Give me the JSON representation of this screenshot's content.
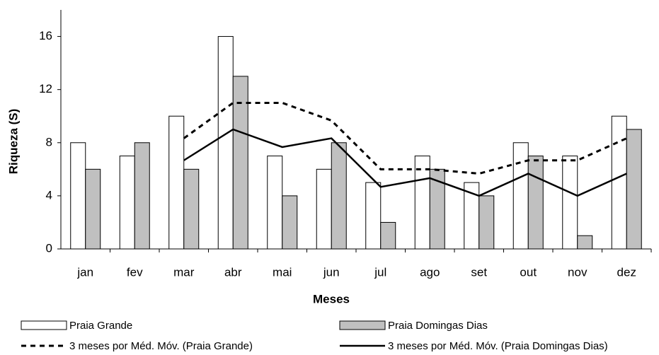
{
  "chart_data": {
    "type": "bar",
    "categories": [
      "jan",
      "fev",
      "mar",
      "abr",
      "mai",
      "jun",
      "jul",
      "ago",
      "set",
      "out",
      "nov",
      "dez"
    ],
    "x_label": "Meses",
    "y_label": "Riqueza (S)",
    "ylim": [
      0,
      18
    ],
    "yticks": [
      0,
      4,
      8,
      12,
      16
    ],
    "series": [
      {
        "name": "Praia Grande",
        "color": "#ffffff",
        "values": [
          8,
          7,
          10,
          16,
          7,
          6,
          5,
          7,
          5,
          8,
          7,
          10
        ]
      },
      {
        "name": "Praia Domingas Dias",
        "color": "#c0c0c0",
        "values": [
          6,
          8,
          6,
          13,
          4,
          8,
          2,
          6,
          4,
          7,
          1,
          9
        ]
      }
    ],
    "lines": [
      {
        "name": "3 meses por Méd. Móv. (Praia Grande)",
        "color": "#000000",
        "style": "dashed",
        "values": [
          null,
          null,
          8.33,
          11,
          11,
          9.67,
          6,
          6,
          5.67,
          6.67,
          6.67,
          8.33
        ]
      },
      {
        "name": "3 meses por Méd. Móv. (Praia Domingas Dias)",
        "color": "#000000",
        "style": "solid",
        "values": [
          null,
          null,
          6.67,
          9,
          7.67,
          8.33,
          4.67,
          5.33,
          4,
          5.67,
          4,
          5.67
        ]
      }
    ]
  }
}
